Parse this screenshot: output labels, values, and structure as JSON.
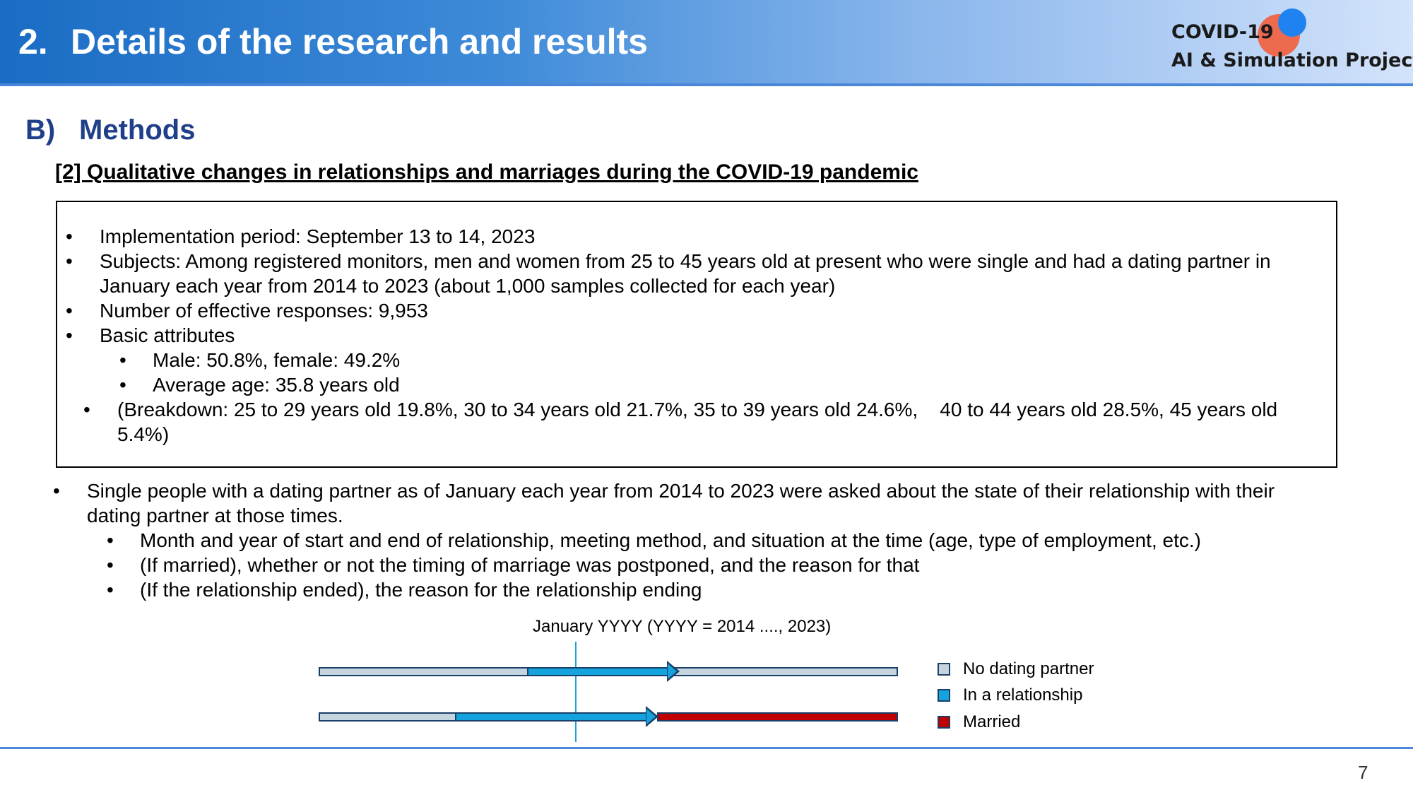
{
  "header": {
    "number": "2.",
    "title": "Details of the research and results",
    "logo_line1": "COVID-19",
    "logo_line2": "AI & Simulation Project",
    "colors": {
      "logo_orange": "#ee6a4f",
      "logo_blue": "#1f82f0"
    }
  },
  "section": {
    "letter": "B)",
    "title": "Methods"
  },
  "subtitle": "[2]  Qualitative changes in relationships and marriages during the COVID-19 pandemic",
  "box": {
    "lines": [
      "Implementation period: September 13 to 14, 2023",
      "Subjects: Among registered monitors, men and women from 25 to 45 years old at present who were single and had a dating partner in",
      "January each year from 2014 to 2023 (about 1,000 samples collected for each year)",
      "Number of effective responses: 9,953",
      "Basic attributes",
      "Male: 50.8%, female: 49.2%",
      "Average age: 35.8 years old",
      "(Breakdown: 25 to 29 years old 19.8%, 30 to 34 years old 21.7%, 35 to 39 years old 24.6%,    40 to 44 years old 28.5%, 45 years old",
      "5.4%)"
    ]
  },
  "body": {
    "lines": [
      "Single people with a dating partner as of January each year from 2014 to 2023 were asked about the state of their relationship with their",
      "dating partner at those times.",
      "Month and year of start and end of relationship, meeting method, and situation at the time (age, type of employment, etc.)",
      "(If married), whether or not the timing of marriage was postponed, and the reason for that",
      "(If the relationship ended), the reason for the relationship ending"
    ]
  },
  "diagram": {
    "january_label": "January YYYY (YYYY = 2014 ...., 2023)",
    "legend": [
      {
        "label": "No dating partner",
        "color": "#c6d4e0"
      },
      {
        "label": "In a relationship",
        "color": "#14a3dc"
      },
      {
        "label": "Married",
        "color": "#c00000"
      }
    ]
  },
  "page_number": "7"
}
